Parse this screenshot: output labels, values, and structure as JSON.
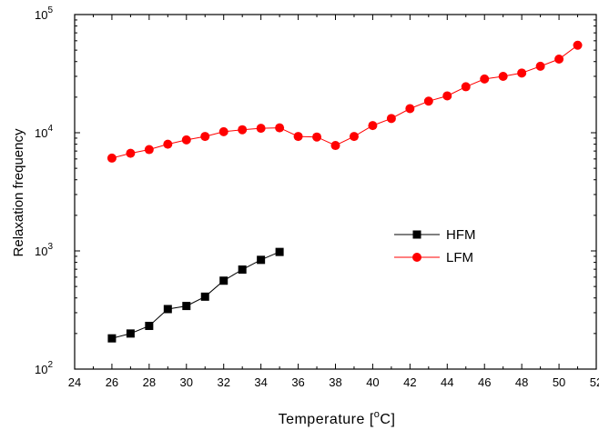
{
  "chart_data": {
    "type": "line",
    "xlabel": "Temperature [",
    "xlabel_unit": "C]",
    "xlabel_degree": "o",
    "ylabel": "Relaxation frequency",
    "y_scale": "log",
    "xlim": [
      24,
      52
    ],
    "ylim": [
      100,
      100000
    ],
    "x_ticks": [
      "24",
      "26",
      "28",
      "30",
      "32",
      "34",
      "36",
      "38",
      "40",
      "42",
      "44",
      "46",
      "48",
      "50",
      "52"
    ],
    "y_ticks": [
      {
        "value": 100,
        "base": "10",
        "exp": "2"
      },
      {
        "value": 1000,
        "base": "10",
        "exp": "3"
      },
      {
        "value": 10000,
        "base": "10",
        "exp": "4"
      },
      {
        "value": 100000,
        "base": "10",
        "exp": "5"
      }
    ],
    "legend_position": "center-right",
    "grid": false,
    "series": [
      {
        "name": "HFM",
        "color": "#000000",
        "marker": "square",
        "x": [
          26,
          27,
          28,
          29,
          30,
          31,
          32,
          33,
          34,
          35
        ],
        "values": [
          182,
          200,
          232,
          322,
          342,
          410,
          560,
          695,
          840,
          980
        ]
      },
      {
        "name": "LFM",
        "color": "#ff0000",
        "marker": "circle",
        "x": [
          26,
          27,
          28,
          29,
          30,
          31,
          32,
          33,
          34,
          35,
          36,
          37,
          38,
          39,
          40,
          41,
          42,
          43,
          44,
          45,
          46,
          47,
          48,
          49,
          50,
          51
        ],
        "values": [
          6100,
          6700,
          7200,
          8000,
          8700,
          9300,
          10200,
          10600,
          10900,
          11000,
          9300,
          9200,
          7800,
          9300,
          11500,
          13200,
          16000,
          18500,
          20500,
          24500,
          28500,
          30000,
          32000,
          36500,
          42000,
          55000
        ]
      }
    ]
  }
}
